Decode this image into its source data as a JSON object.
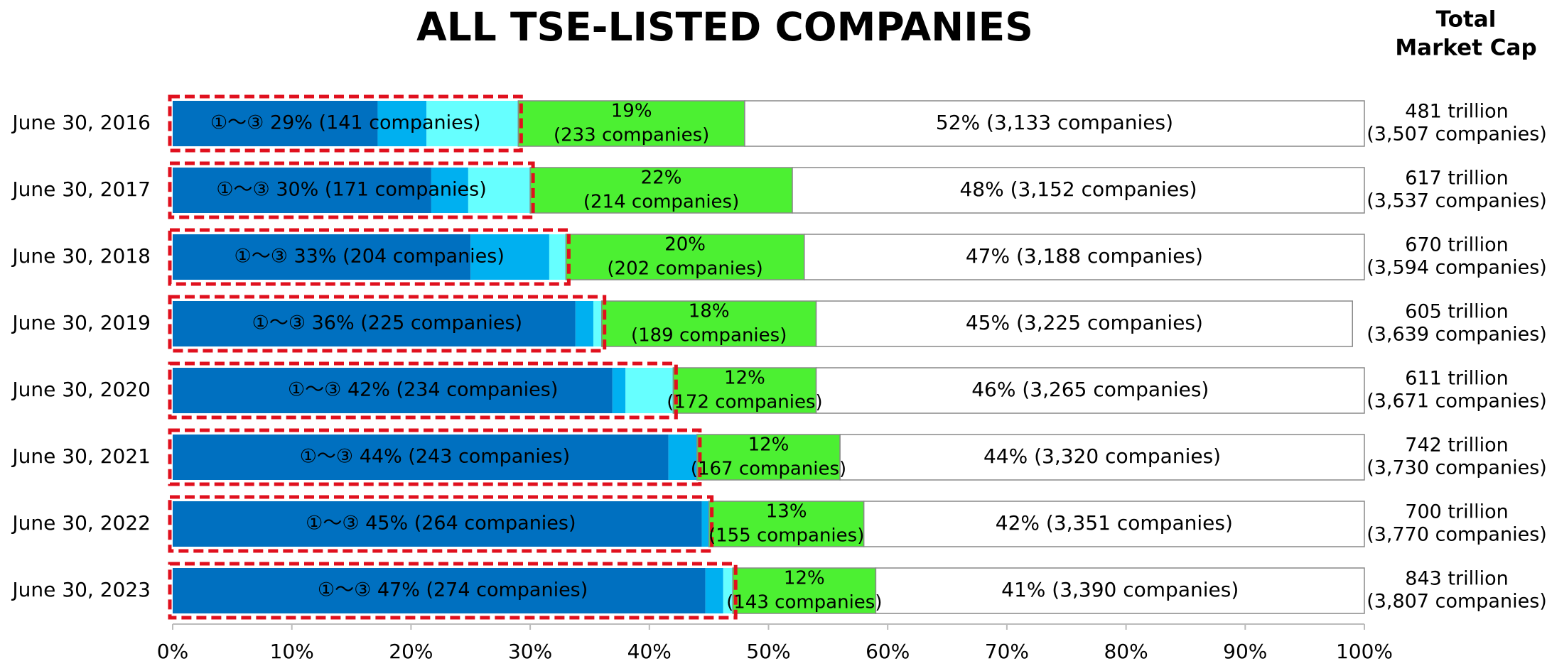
{
  "chart_data": {
    "type": "stacked_hbar",
    "title": "ALL TSE-LISTED COMPANIES",
    "right_title": [
      "Total",
      "Market Cap"
    ],
    "categories": [
      "June 30, 2016",
      "June 30, 2017",
      "June 30, 2018",
      "June 30, 2019",
      "June 30, 2020",
      "June 30, 2021",
      "June 30, 2022",
      "June 30, 2023"
    ],
    "series": [
      {
        "color": "#0070c0",
        "values": [
          17.2,
          21.7,
          25.0,
          33.8,
          36.9,
          41.6,
          44.4,
          44.7
        ]
      },
      {
        "color": "#00b0f0",
        "values": [
          4.1,
          3.1,
          6.6,
          1.5,
          1.1,
          2.4,
          0.6,
          1.5
        ]
      },
      {
        "color": "#66ffff",
        "values": [
          7.7,
          5.2,
          1.4,
          0.7,
          4.0,
          0,
          0,
          0.8
        ]
      },
      {
        "color": "#4cf032",
        "values": [
          19,
          22,
          20,
          18,
          12,
          12,
          13,
          12
        ],
        "value_labels": [
          "19%",
          "22%",
          "20%",
          "18%",
          "12%",
          "12%",
          "13%",
          "12%"
        ],
        "count_labels": [
          "(233 companies)",
          "(214 companies)",
          "(202 companies)",
          "(189 companies)",
          "(172 companies)",
          "(167 companies)",
          "(155 companies)",
          "(143 companies)"
        ]
      },
      {
        "color": "#ffffff",
        "values": [
          52,
          48,
          47,
          45,
          46,
          44,
          42,
          41
        ],
        "value_labels": [
          "52% (3,133 companies)",
          "48% (3,152 companies)",
          "47% (3,188 companies)",
          "45% (3,225 companies)",
          "46% (3,265 companies)",
          "44% (3,320 companies)",
          "42% (3,351 companies)",
          "41% (3,390 companies)"
        ]
      }
    ],
    "group": {
      "color": "#e0101e",
      "values": [
        29,
        30,
        33,
        36,
        42,
        44,
        45,
        47
      ],
      "value_labels": [
        "①～③ 29% (141 companies)",
        "①～③ 30% (171 companies)",
        "①～③ 33% (204 companies)",
        "①～③ 36% (225 companies)",
        "①～③ 42% (234 companies)",
        "①～③ 44% (243 companies)",
        "①～③ 45% (264 companies)",
        "①～③ 47% (274 companies)"
      ]
    },
    "totals": [
      [
        "481 trillion",
        "(3,507 companies)"
      ],
      [
        "617 trillion",
        "(3,537 companies)"
      ],
      [
        "670 trillion",
        "(3,594 companies)"
      ],
      [
        "605 trillion",
        "(3,639 companies)"
      ],
      [
        "611 trillion",
        "(3,671 companies)"
      ],
      [
        "742 trillion",
        "(3,730 companies)"
      ],
      [
        "700 trillion",
        "(3,770 companies)"
      ],
      [
        "843 trillion",
        "(3,807 companies)"
      ]
    ],
    "xlim": [
      0,
      100
    ],
    "xticks": [
      {
        "value": 0,
        "label": "0%"
      },
      {
        "value": 10,
        "label": "10%"
      },
      {
        "value": 20,
        "label": "20%"
      },
      {
        "value": 30,
        "label": "30%"
      },
      {
        "value": 40,
        "label": "40%"
      },
      {
        "value": 50,
        "label": "50%"
      },
      {
        "value": 60,
        "label": "60%"
      },
      {
        "value": 70,
        "label": "70%"
      },
      {
        "value": 80,
        "label": "80%"
      },
      {
        "value": 90,
        "label": "90%"
      },
      {
        "value": 100,
        "label": "100%"
      }
    ]
  }
}
